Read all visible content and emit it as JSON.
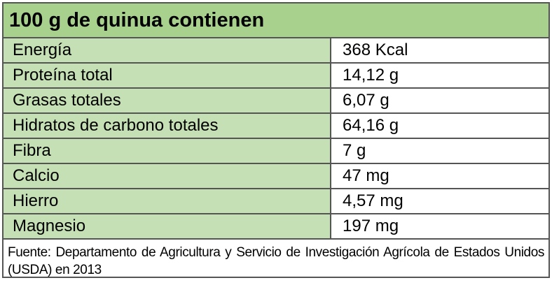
{
  "table": {
    "title": "100 g de quinua contienen",
    "rows": [
      {
        "nutrient": "Energía",
        "value": "368 Kcal"
      },
      {
        "nutrient": "Proteína total",
        "value": "14,12 g"
      },
      {
        "nutrient": "Grasas totales",
        "value": "6,07 g"
      },
      {
        "nutrient": "Hidratos de carbono totales",
        "value": "64,16 g"
      },
      {
        "nutrient": "Fibra",
        "value": "7 g"
      },
      {
        "nutrient": "Calcio",
        "value": "47 mg"
      },
      {
        "nutrient": "Hierro",
        "value": "4,57 mg"
      },
      {
        "nutrient": "Magnesio",
        "value": "197 mg"
      }
    ],
    "source": "Fuente: Departamento de Agricultura y Servicio de Investigación Agrícola de Estados Unidos (USDA) en 2013"
  },
  "colors": {
    "header_bg": "#a9d18e",
    "label_bg": "#c5e0b4",
    "value_bg": "#ffffff",
    "border": "#555555"
  }
}
